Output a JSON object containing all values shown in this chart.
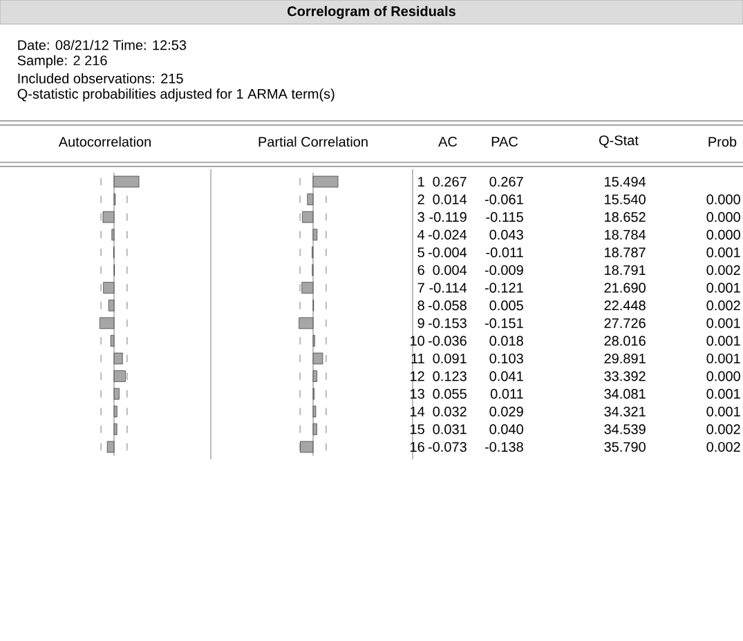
{
  "chart_data": [
    {
      "type": "bar",
      "orientation": "horizontal",
      "title": "Autocorrelation",
      "annotations": [
        "AC"
      ],
      "categories": [
        "1",
        "2",
        "3",
        "4",
        "5",
        "6",
        "7",
        "8",
        "9",
        "10",
        "11",
        "12",
        "13",
        "14",
        "15",
        "16"
      ],
      "series": [
        {
          "color": "#a6a6a6",
          "values": [
            0.267,
            0.014,
            -0.119,
            -0.024,
            -0.004,
            0.004,
            -0.114,
            -0.058,
            -0.153,
            -0.036,
            0.091,
            0.123,
            0.055,
            0.032,
            0.031,
            -0.073
          ],
          "value_labels": [
            "0.267",
            "0.014",
            "-0.119",
            "-0.024",
            "-0.004",
            "0.004",
            "-0.114",
            "-0.058",
            "-0.153",
            "-0.036",
            "0.091",
            "0.123",
            "0.055",
            "0.032",
            "0.031",
            "-0.073"
          ]
        }
      ],
      "tick_labels": false,
      "ref_lines": [
        {
          "axis": "x",
          "value": -0.14,
          "line_style": "dashed"
        },
        {
          "axis": "x",
          "value": 0.14,
          "line_style": "dashed"
        }
      ]
    },
    {
      "type": "bar",
      "orientation": "horizontal",
      "title": "Partial Correlation",
      "annotations": [
        "PAC"
      ],
      "categories": [
        null,
        null,
        null,
        null,
        null,
        null,
        null,
        null,
        null,
        null,
        null,
        null,
        null,
        null,
        null,
        null
      ],
      "series": [
        {
          "color": "#a6a6a6",
          "values": [
            0.267,
            -0.061,
            -0.115,
            0.043,
            -0.011,
            -0.009,
            -0.121,
            0.005,
            -0.151,
            0.018,
            0.103,
            0.041,
            0.011,
            0.029,
            0.04,
            -0.138
          ],
          "value_labels": [
            "0.267",
            "-0.061",
            "-0.115",
            "0.043",
            "-0.011",
            "-0.009",
            "-0.121",
            "0.005",
            "-0.151",
            "0.018",
            "0.103",
            "0.041",
            "0.011",
            "0.029",
            "0.040",
            "-0.138"
          ]
        }
      ],
      "tick_labels": false,
      "ref_lines": [
        {
          "axis": "x",
          "value": -0.14,
          "line_style": "dashed"
        },
        {
          "axis": "x",
          "value": 0.14,
          "line_style": "dashed"
        }
      ]
    },
    {
      "type": "other",
      "title": "Correlogram of Residuals",
      "annotations": [
        "Date: 08/21/12   Time: 12:53",
        "Sample: 2 216",
        "Included observations: 215",
        "Q-statistic probabilities adjusted for 1 ARMA term(s)"
      ],
      "subtitle": null
    },
    {
      "type": "other",
      "annotations": [
        "Q-Stat",
        "15.494",
        "15.540",
        "18.652",
        "18.784",
        "18.787",
        "18.791",
        "21.690",
        "22.448",
        "27.726",
        "28.016",
        "29.891",
        "33.392",
        "34.081",
        "34.321",
        "34.539",
        "35.790",
        "Prob",
        "0.000",
        "0.000",
        "0.000",
        "0.001",
        "0.002",
        "0.001",
        "0.002",
        "0.001",
        "0.001",
        "0.001",
        "0.000",
        "0.001",
        "0.001",
        "0.002",
        "0.002"
      ]
    }
  ]
}
